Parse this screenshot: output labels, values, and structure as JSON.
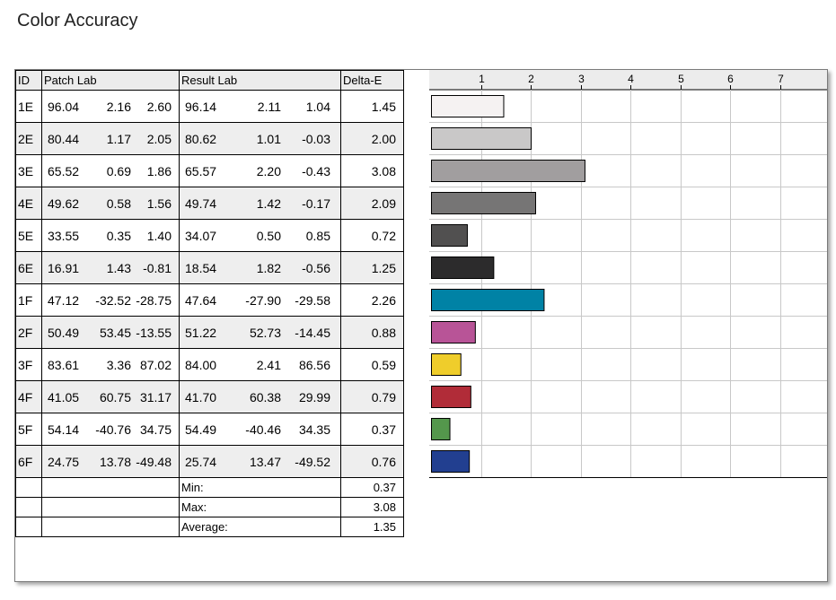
{
  "title": "Color Accuracy",
  "headers": {
    "id": "ID",
    "patch": "Patch Lab",
    "result": "Result Lab",
    "delta": "Delta-E"
  },
  "rows": [
    {
      "id": "1E",
      "patch": [
        "96.04",
        "2.16",
        "2.60"
      ],
      "result": [
        "96.14",
        "2.11",
        "1.04"
      ],
      "delta": "1.45",
      "color": "#f5f2f2"
    },
    {
      "id": "2E",
      "patch": [
        "80.44",
        "1.17",
        "2.05"
      ],
      "result": [
        "80.62",
        "1.01",
        "-0.03"
      ],
      "delta": "2.00",
      "color": "#c9c8c8"
    },
    {
      "id": "3E",
      "patch": [
        "65.52",
        "0.69",
        "1.86"
      ],
      "result": [
        "65.57",
        "2.20",
        "-0.43"
      ],
      "delta": "3.08",
      "color": "#a19e9f"
    },
    {
      "id": "4E",
      "patch": [
        "49.62",
        "0.58",
        "1.56"
      ],
      "result": [
        "49.74",
        "1.42",
        "-0.17"
      ],
      "delta": "2.09",
      "color": "#767575"
    },
    {
      "id": "5E",
      "patch": [
        "33.55",
        "0.35",
        "1.40"
      ],
      "result": [
        "34.07",
        "0.50",
        "0.85"
      ],
      "delta": "0.72",
      "color": "#515050"
    },
    {
      "id": "6E",
      "patch": [
        "16.91",
        "1.43",
        "-0.81"
      ],
      "result": [
        "18.54",
        "1.82",
        "-0.56"
      ],
      "delta": "1.25",
      "color": "#2c2b2c"
    },
    {
      "id": "1F",
      "patch": [
        "47.12",
        "-32.52",
        "-28.75"
      ],
      "result": [
        "47.64",
        "-27.90",
        "-29.58"
      ],
      "delta": "2.26",
      "color": "#0082a5"
    },
    {
      "id": "2F",
      "patch": [
        "50.49",
        "53.45",
        "-13.55"
      ],
      "result": [
        "51.22",
        "52.73",
        "-14.45"
      ],
      "delta": "0.88",
      "color": "#b85497"
    },
    {
      "id": "3F",
      "patch": [
        "83.61",
        "3.36",
        "87.02"
      ],
      "result": [
        "84.00",
        "2.41",
        "86.56"
      ],
      "delta": "0.59",
      "color": "#efcd2b"
    },
    {
      "id": "4F",
      "patch": [
        "41.05",
        "60.75",
        "31.17"
      ],
      "result": [
        "41.70",
        "60.38",
        "29.99"
      ],
      "delta": "0.79",
      "color": "#b12c38"
    },
    {
      "id": "5F",
      "patch": [
        "54.14",
        "-40.76",
        "34.75"
      ],
      "result": [
        "54.49",
        "-40.46",
        "34.35"
      ],
      "delta": "0.37",
      "color": "#54974c"
    },
    {
      "id": "6F",
      "patch": [
        "24.75",
        "13.78",
        "-49.48"
      ],
      "result": [
        "25.74",
        "13.47",
        "-49.52"
      ],
      "delta": "0.76",
      "color": "#223f90"
    }
  ],
  "summary": [
    {
      "label": "Min:",
      "value": "0.37"
    },
    {
      "label": "Max:",
      "value": "3.08"
    },
    {
      "label": "Average:",
      "value": "1.35"
    }
  ],
  "chart_data": {
    "type": "bar",
    "orientation": "horizontal",
    "categories": [
      "1E",
      "2E",
      "3E",
      "4E",
      "5E",
      "6E",
      "1F",
      "2F",
      "3F",
      "4F",
      "5F",
      "6F"
    ],
    "values": [
      1.45,
      2.0,
      3.08,
      2.09,
      0.72,
      1.25,
      2.26,
      0.88,
      0.59,
      0.79,
      0.37,
      0.76
    ],
    "colors": [
      "#f5f2f2",
      "#c9c8c8",
      "#a19e9f",
      "#767575",
      "#515050",
      "#2c2b2c",
      "#0082a5",
      "#b85497",
      "#efcd2b",
      "#b12c38",
      "#54974c",
      "#223f90"
    ],
    "xticks": [
      1,
      2,
      3,
      4,
      5,
      6,
      7
    ],
    "xlim": [
      0,
      8
    ],
    "grid": true,
    "title": "",
    "xlabel": "",
    "ylabel": ""
  }
}
